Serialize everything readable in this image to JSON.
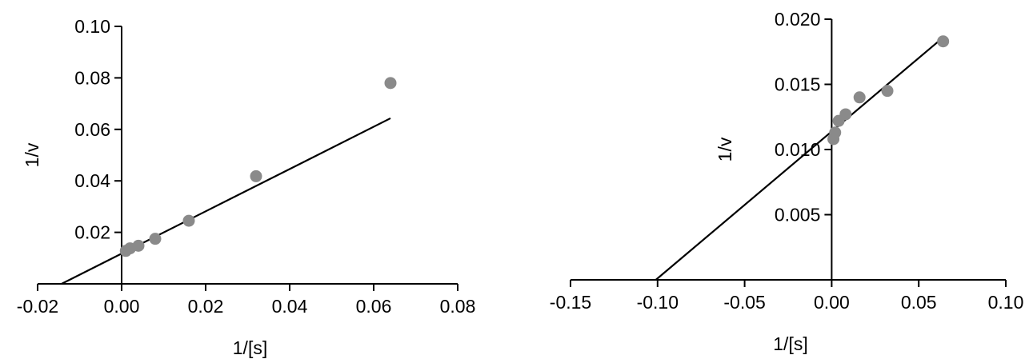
{
  "chart_data": [
    {
      "type": "scatter",
      "title": "",
      "xlabel": "1/[s]",
      "ylabel": "1/v",
      "xlim": [
        -0.02,
        0.08
      ],
      "ylim": [
        0,
        0.1
      ],
      "xticks": [
        "-0.02",
        "0.00",
        "0.02",
        "0.04",
        "0.06",
        "0.08"
      ],
      "yticks": [
        "0.02",
        "0.04",
        "0.06",
        "0.08",
        "0.10"
      ],
      "points": [
        {
          "x": 0.001,
          "y": 0.0128
        },
        {
          "x": 0.002,
          "y": 0.0138
        },
        {
          "x": 0.004,
          "y": 0.0148
        },
        {
          "x": 0.008,
          "y": 0.0175
        },
        {
          "x": 0.016,
          "y": 0.0245
        },
        {
          "x": 0.032,
          "y": 0.0418
        },
        {
          "x": 0.064,
          "y": 0.078
        }
      ],
      "fit_line": {
        "x": [
          -0.0143,
          0.064
        ],
        "y": [
          0.0,
          0.0643
        ]
      },
      "grid": false,
      "colors": {
        "points": "#8a8a8a",
        "line": "#000000"
      }
    },
    {
      "type": "scatter",
      "title": "",
      "xlabel": "1/[s]",
      "ylabel": "1/v",
      "xlim": [
        -0.15,
        0.1
      ],
      "ylim": [
        0,
        0.02
      ],
      "xticks": [
        "-0.15",
        "-0.10",
        "-0.05",
        "0.00",
        "0.05",
        "0.10"
      ],
      "yticks": [
        "0.005",
        "0.010",
        "0.015",
        "0.020"
      ],
      "points": [
        {
          "x": 0.001,
          "y": 0.0108
        },
        {
          "x": 0.002,
          "y": 0.0113
        },
        {
          "x": 0.004,
          "y": 0.0122
        },
        {
          "x": 0.008,
          "y": 0.0127
        },
        {
          "x": 0.016,
          "y": 0.014
        },
        {
          "x": 0.032,
          "y": 0.0145
        },
        {
          "x": 0.064,
          "y": 0.0183
        }
      ],
      "fit_line": {
        "x": [
          -0.101,
          0.064
        ],
        "y": [
          0.0,
          0.0186
        ]
      },
      "grid": false,
      "colors": {
        "points": "#8a8a8a",
        "line": "#000000"
      }
    }
  ]
}
